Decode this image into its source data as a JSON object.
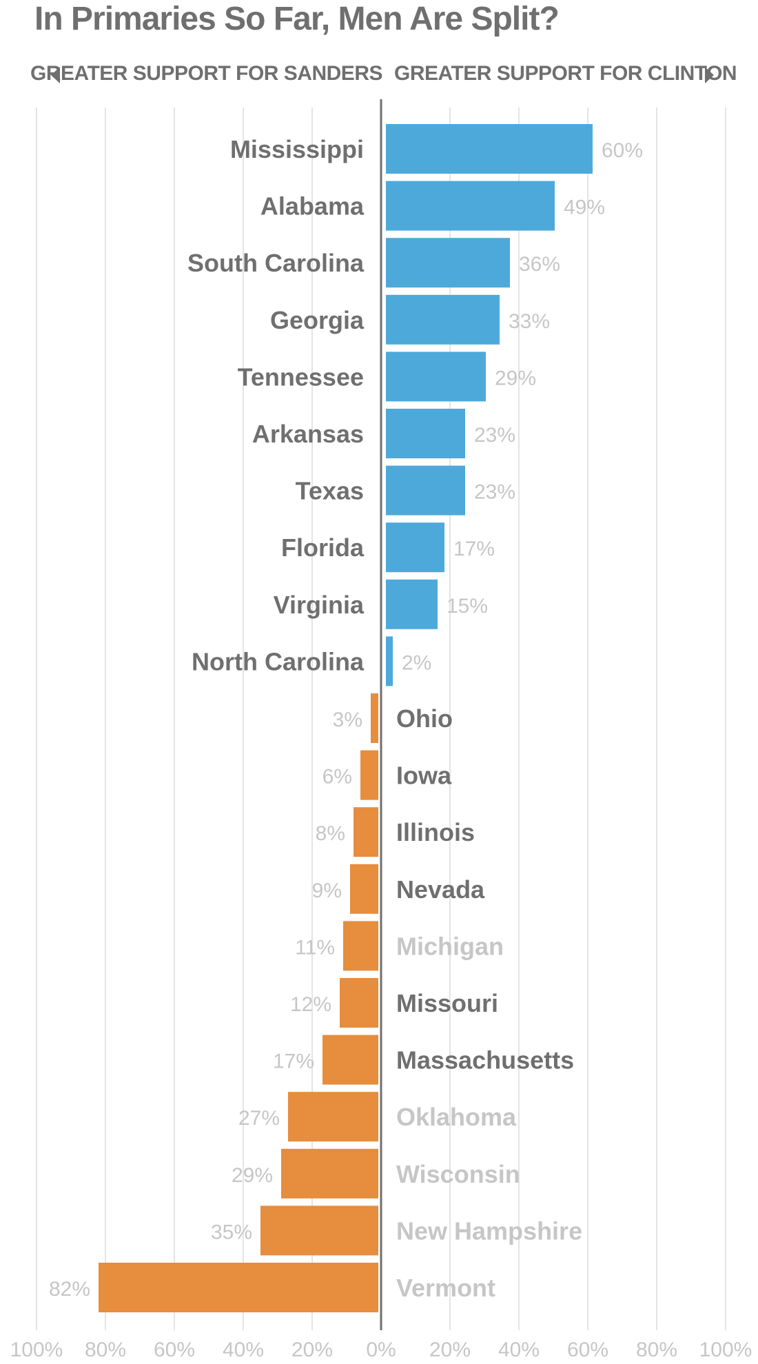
{
  "title": "In Primaries So Far, Men Are Split?",
  "legend": {
    "left_label": "GREATER SUPPORT FOR SANDERS",
    "right_label": "GREATER SUPPORT FOR CLINTON"
  },
  "colors": {
    "clinton": "#4ea9db",
    "sanders": "#e68d3e",
    "label_dark": "#6f6f6f",
    "label_light": "#c6c6c6",
    "grid": "#e4e4e4",
    "axis": "#6f6f6f"
  },
  "chart_data": {
    "type": "bar",
    "orientation": "horizontal",
    "diverging": true,
    "xlim": [
      -100,
      100
    ],
    "x_ticks": [
      "100%",
      "80%",
      "60%",
      "40%",
      "20%",
      "0%",
      "20%",
      "40%",
      "60%",
      "80%",
      "100%"
    ],
    "grid": true,
    "categories": [
      "Mississippi",
      "Alabama",
      "South Carolina",
      "Georgia",
      "Tennessee",
      "Arkansas",
      "Texas",
      "Florida",
      "Virginia",
      "North Carolina",
      "Ohio",
      "Iowa",
      "Illinois",
      "Nevada",
      "Michigan",
      "Missouri",
      "Massachusetts",
      "Oklahoma",
      "Wisconsin",
      "New Hampshire",
      "Vermont"
    ],
    "values": [
      60,
      49,
      36,
      33,
      29,
      23,
      23,
      17,
      15,
      2,
      -3,
      -6,
      -8,
      -9,
      -11,
      -12,
      -17,
      -27,
      -29,
      -35,
      -82
    ],
    "value_labels": [
      "60%",
      "49%",
      "36%",
      "33%",
      "29%",
      "23%",
      "23%",
      "17%",
      "15%",
      "2%",
      "3%",
      "6%",
      "8%",
      "9%",
      "11%",
      "12%",
      "17%",
      "27%",
      "29%",
      "35%",
      "82%"
    ],
    "label_emphasis": [
      "dark",
      "dark",
      "dark",
      "dark",
      "dark",
      "dark",
      "dark",
      "dark",
      "dark",
      "dark",
      "dark",
      "dark",
      "dark",
      "dark",
      "light",
      "dark",
      "dark",
      "light",
      "light",
      "light",
      "light"
    ]
  }
}
